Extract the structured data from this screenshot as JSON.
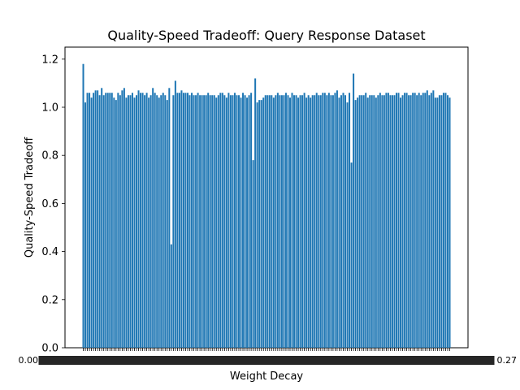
{
  "chart_data": {
    "type": "bar",
    "title": "Quality-Speed Tradeoff: Query Response Dataset",
    "xlabel": "Weight Decay",
    "ylabel": "Quality-Speed Tradeoff",
    "ylim": [
      0,
      1.25
    ],
    "yticks": [
      "0.0",
      "0.2",
      "0.4",
      "0.6",
      "0.8",
      "1.0",
      "1.2"
    ],
    "xticks_note": "dense overlapping tick labels under each bar",
    "grid": false,
    "bar_color": "#1f77b4",
    "values": [
      1.18,
      1.02,
      1.06,
      1.06,
      1.04,
      1.06,
      1.07,
      1.07,
      1.05,
      1.08,
      1.05,
      1.06,
      1.06,
      1.06,
      1.06,
      1.04,
      1.03,
      1.06,
      1.05,
      1.07,
      1.08,
      1.04,
      1.05,
      1.05,
      1.06,
      1.04,
      1.05,
      1.07,
      1.06,
      1.06,
      1.05,
      1.06,
      1.04,
      1.05,
      1.08,
      1.06,
      1.05,
      1.04,
      1.05,
      1.06,
      1.05,
      1.03,
      1.08,
      0.43,
      1.05,
      1.11,
      1.06,
      1.06,
      1.07,
      1.06,
      1.06,
      1.06,
      1.05,
      1.06,
      1.05,
      1.05,
      1.06,
      1.05,
      1.05,
      1.05,
      1.05,
      1.06,
      1.05,
      1.05,
      1.05,
      1.04,
      1.05,
      1.06,
      1.06,
      1.05,
      1.04,
      1.06,
      1.05,
      1.05,
      1.06,
      1.05,
      1.05,
      1.04,
      1.06,
      1.05,
      1.04,
      1.05,
      1.06,
      0.78,
      1.12,
      1.02,
      1.03,
      1.03,
      1.04,
      1.05,
      1.05,
      1.05,
      1.05,
      1.04,
      1.05,
      1.06,
      1.05,
      1.05,
      1.05,
      1.06,
      1.05,
      1.04,
      1.06,
      1.05,
      1.05,
      1.04,
      1.05,
      1.05,
      1.06,
      1.04,
      1.05,
      1.04,
      1.05,
      1.05,
      1.06,
      1.05,
      1.05,
      1.06,
      1.06,
      1.05,
      1.06,
      1.05,
      1.05,
      1.06,
      1.07,
      1.04,
      1.05,
      1.06,
      1.05,
      1.02,
      1.06,
      0.77,
      1.14,
      1.03,
      1.04,
      1.05,
      1.05,
      1.05,
      1.06,
      1.04,
      1.05,
      1.05,
      1.05,
      1.04,
      1.05,
      1.06,
      1.05,
      1.05,
      1.06,
      1.06,
      1.05,
      1.05,
      1.05,
      1.06,
      1.06,
      1.04,
      1.05,
      1.06,
      1.06,
      1.05,
      1.05,
      1.06,
      1.06,
      1.05,
      1.06,
      1.05,
      1.06,
      1.06,
      1.07,
      1.05,
      1.06,
      1.07,
      1.04,
      1.04,
      1.05,
      1.05,
      1.06,
      1.06,
      1.05,
      1.04
    ],
    "xtick_left_label": "0.00",
    "xtick_right_label": "0.27"
  }
}
